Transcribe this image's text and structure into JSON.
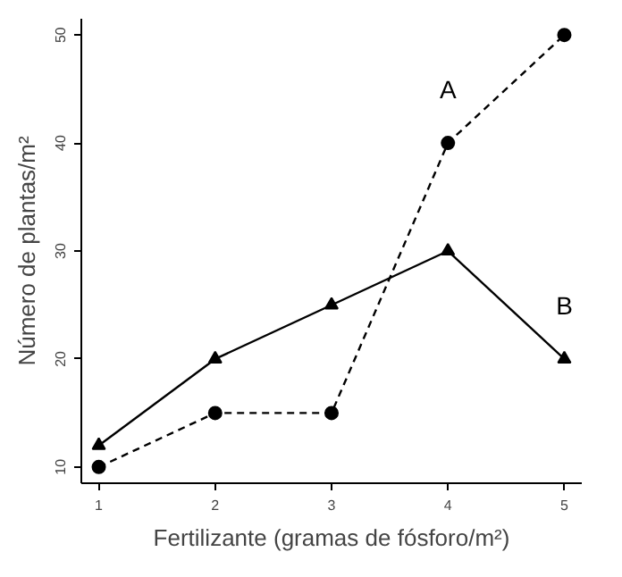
{
  "chart_data": {
    "type": "line",
    "xlabel": "Fertilizante (gramas de fósforo/m²)",
    "ylabel": "Número de plantas/m²",
    "x": [
      1,
      2,
      3,
      4,
      5
    ],
    "series": [
      {
        "name": "A",
        "color": "#000000",
        "values": [
          10,
          15,
          15,
          40,
          50
        ],
        "marker": "circle",
        "line_style": "dashed"
      },
      {
        "name": "B",
        "color": "#000000",
        "values": [
          12,
          20,
          25,
          30,
          20
        ],
        "marker": "triangle",
        "line_style": "solid"
      }
    ],
    "xlim": [
      0.85,
      5.15
    ],
    "ylim": [
      8.5,
      51.5
    ],
    "xticks": [
      1,
      2,
      3,
      4,
      5
    ],
    "yticks": [
      10,
      20,
      30,
      40,
      50
    ],
    "grid": false
  }
}
